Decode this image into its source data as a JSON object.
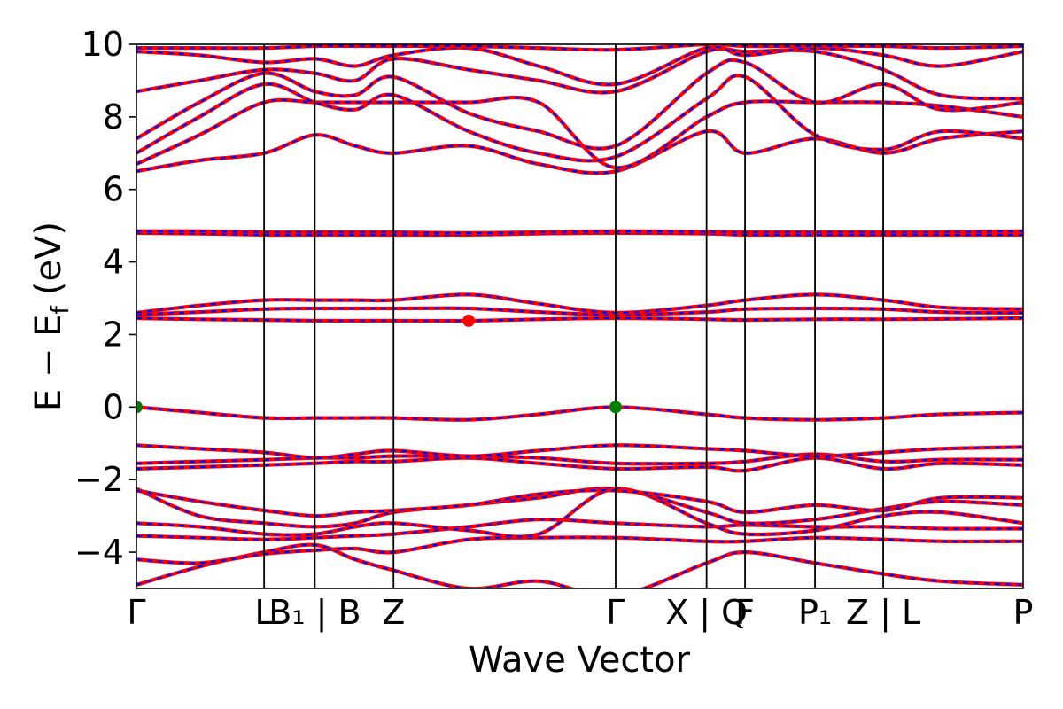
{
  "chart_data": {
    "type": "line",
    "title": "",
    "xlabel": "Wave Vector",
    "ylabel_main": "E − E",
    "ylabel_sub": "f",
    "ylabel_unit": "(eV)",
    "ylim": [
      -5,
      10
    ],
    "yticks": [
      -4,
      -2,
      0,
      2,
      4,
      6,
      8,
      10
    ],
    "ytick_labels": [
      "−4",
      "−2",
      "0",
      "2",
      "4",
      "6",
      "8",
      "10"
    ],
    "xlim": [
      0,
      5.07
    ],
    "kpoints": [
      {
        "x": 0.0,
        "label": "Γ"
      },
      {
        "x": 0.73,
        "label": "L"
      },
      {
        "x": 1.02,
        "label": "B₁ | B"
      },
      {
        "x": 1.47,
        "label": "Z"
      },
      {
        "x": 2.74,
        "label": "Γ"
      },
      {
        "x": 3.26,
        "label": "X | Q"
      },
      {
        "x": 3.48,
        "label": "F"
      },
      {
        "x": 3.88,
        "label": "P₁"
      },
      {
        "x": 4.27,
        "label": "Z | L"
      },
      {
        "x": 5.07,
        "label": "P"
      }
    ],
    "grid": false,
    "legend": "none",
    "colors": {
      "spin_up": "#ff0000",
      "spin_down": "#0000ff",
      "cbm": "#ff0000",
      "vbm": "#008000",
      "kpath_line": "#000000"
    },
    "band_nodes": [
      0,
      0.36,
      0.73,
      1.02,
      1.25,
      1.47,
      1.9,
      2.3,
      2.74,
      3.26,
      3.48,
      3.88,
      4.27,
      4.6,
      5.07
    ],
    "bands": [
      [
        -4.9,
        -4.4,
        -4.0,
        -3.8,
        -4.2,
        -4.5,
        -5.0,
        -4.8,
        -5.2,
        -4.3,
        -4.0,
        -4.3,
        -4.6,
        -4.8,
        -4.9
      ],
      [
        -4.2,
        -4.3,
        -4.05,
        -3.95,
        -3.9,
        -4.0,
        -3.65,
        -3.6,
        -3.6,
        -3.7,
        -3.7,
        -3.6,
        -3.65,
        -3.7,
        -3.7
      ],
      [
        -3.55,
        -3.6,
        -3.65,
        -3.6,
        -3.55,
        -3.5,
        -3.3,
        -3.1,
        -3.2,
        -3.3,
        -3.25,
        -3.3,
        -3.3,
        -3.35,
        -3.35
      ],
      [
        -3.2,
        -3.3,
        -3.5,
        -3.5,
        -3.3,
        -3.2,
        -3.4,
        -3.5,
        -2.25,
        -3.2,
        -3.5,
        -3.4,
        -3.0,
        -2.9,
        -3.2
      ],
      [
        -2.25,
        -3.0,
        -3.2,
        -3.3,
        -3.2,
        -2.9,
        -2.7,
        -2.5,
        -2.25,
        -2.9,
        -3.2,
        -3.1,
        -2.8,
        -2.6,
        -2.7
      ],
      [
        -2.3,
        -2.6,
        -2.85,
        -3.0,
        -2.9,
        -2.85,
        -2.7,
        -2.4,
        -2.3,
        -2.6,
        -2.9,
        -2.7,
        -2.85,
        -2.5,
        -2.5
      ],
      [
        -1.7,
        -1.65,
        -1.6,
        -1.55,
        -1.5,
        -1.5,
        -1.4,
        -1.55,
        -1.7,
        -1.65,
        -1.75,
        -1.4,
        -1.7,
        -1.55,
        -1.6
      ],
      [
        -1.55,
        -1.5,
        -1.45,
        -1.4,
        -1.4,
        -1.35,
        -1.35,
        -1.4,
        -1.55,
        -1.55,
        -1.5,
        -1.3,
        -1.5,
        -1.45,
        -1.45
      ],
      [
        -1.05,
        -1.15,
        -1.25,
        -1.4,
        -1.3,
        -1.2,
        -1.35,
        -1.2,
        -1.05,
        -1.15,
        -1.2,
        -1.35,
        -1.25,
        -1.15,
        -1.1
      ],
      [
        0.0,
        -0.15,
        -0.3,
        -0.3,
        -0.3,
        -0.3,
        -0.35,
        -0.2,
        0.0,
        -0.2,
        -0.3,
        -0.35,
        -0.3,
        -0.2,
        -0.15
      ],
      [
        2.45,
        2.42,
        2.4,
        2.38,
        2.38,
        2.38,
        2.38,
        2.42,
        2.45,
        2.42,
        2.4,
        2.42,
        2.42,
        2.43,
        2.45
      ],
      [
        2.55,
        2.62,
        2.7,
        2.72,
        2.72,
        2.72,
        2.72,
        2.62,
        2.55,
        2.62,
        2.7,
        2.72,
        2.7,
        2.62,
        2.6
      ],
      [
        2.6,
        2.8,
        2.95,
        2.95,
        2.95,
        2.95,
        3.1,
        2.85,
        2.6,
        2.8,
        2.95,
        3.1,
        2.95,
        2.75,
        2.7
      ],
      [
        4.8,
        4.78,
        4.75,
        4.75,
        4.75,
        4.75,
        4.75,
        4.78,
        4.8,
        4.78,
        4.75,
        4.75,
        4.75,
        4.75,
        4.75
      ],
      [
        4.85,
        4.85,
        4.82,
        4.82,
        4.82,
        4.82,
        4.8,
        4.82,
        4.85,
        4.83,
        4.82,
        4.82,
        4.82,
        4.82,
        4.85
      ],
      [
        6.5,
        6.8,
        7.0,
        7.5,
        7.2,
        7.0,
        7.2,
        6.7,
        6.5,
        7.6,
        7.0,
        7.4,
        7.0,
        7.4,
        7.6
      ],
      [
        6.7,
        7.5,
        8.4,
        8.4,
        8.4,
        8.4,
        8.4,
        8.4,
        6.6,
        8.0,
        8.4,
        8.4,
        8.4,
        8.3,
        8.0
      ],
      [
        7.0,
        8.0,
        8.9,
        8.4,
        8.2,
        8.6,
        7.6,
        7.0,
        6.9,
        8.5,
        9.1,
        7.5,
        7.1,
        7.6,
        7.4
      ],
      [
        7.4,
        8.4,
        9.2,
        8.7,
        8.6,
        9.1,
        8.1,
        7.6,
        7.2,
        9.2,
        9.5,
        8.4,
        8.9,
        8.2,
        8.4
      ],
      [
        8.7,
        9.0,
        9.3,
        9.2,
        9.0,
        9.6,
        9.3,
        9.0,
        8.7,
        9.8,
        9.8,
        9.8,
        9.3,
        8.6,
        8.5
      ],
      [
        9.8,
        9.7,
        9.5,
        9.6,
        9.4,
        9.7,
        9.9,
        9.4,
        8.9,
        9.9,
        9.7,
        9.9,
        9.7,
        9.4,
        9.8
      ],
      [
        9.9,
        9.9,
        9.9,
        9.95,
        9.95,
        9.95,
        9.95,
        9.9,
        9.85,
        10.0,
        9.95,
        9.95,
        9.95,
        9.9,
        9.95
      ]
    ],
    "markers": [
      {
        "x": 0.0,
        "y": 0.0,
        "kind": "vbm"
      },
      {
        "x": 2.74,
        "y": 0.0,
        "kind": "vbm"
      },
      {
        "x": 1.9,
        "y": 2.38,
        "kind": "cbm"
      }
    ]
  }
}
